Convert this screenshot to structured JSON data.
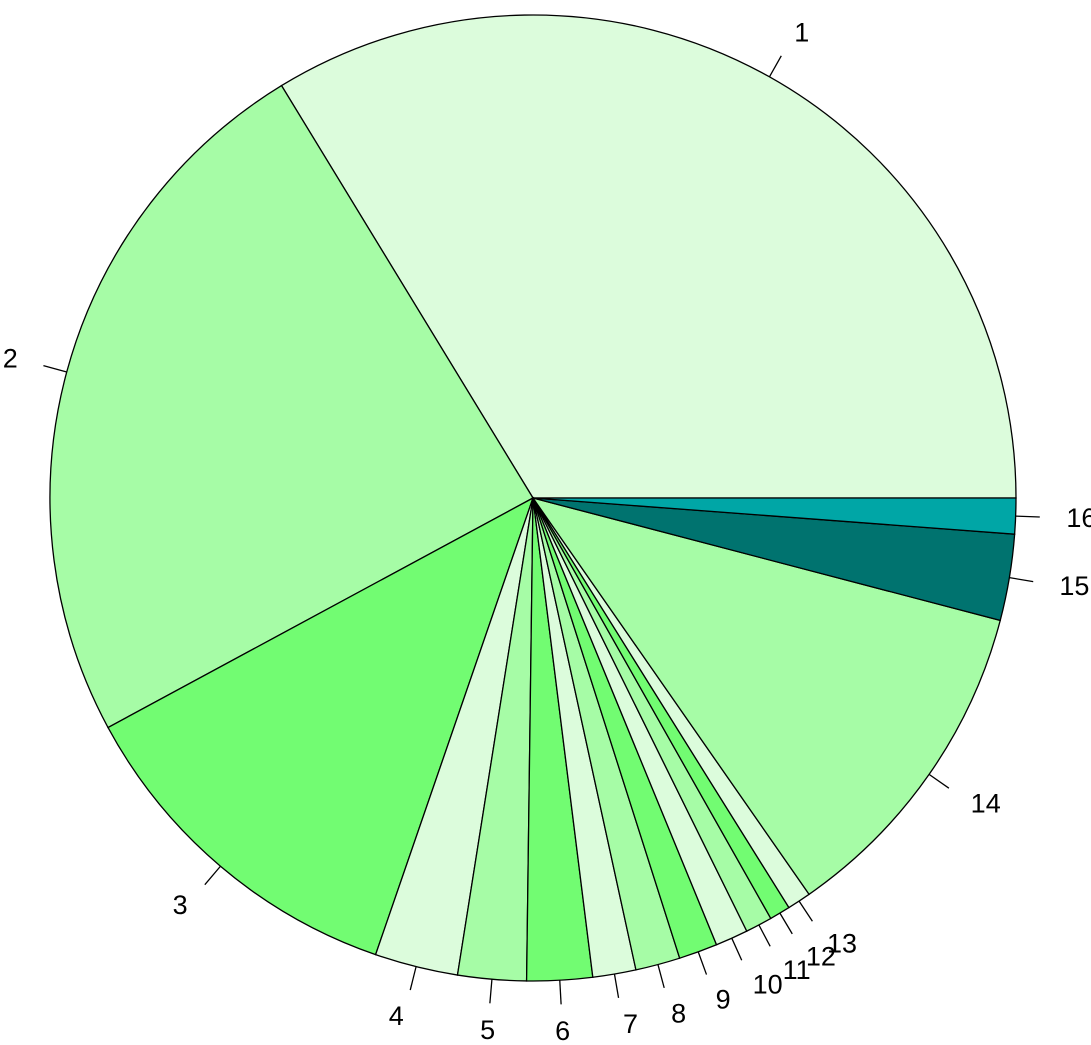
{
  "chart_data": {
    "type": "pie",
    "title": "",
    "start_angle_deg": 0,
    "direction": "counterclockwise",
    "slices": [
      {
        "label": "1",
        "value": 33.9,
        "color": "#DCFCDC"
      },
      {
        "label": "2",
        "value": 24.3,
        "color": "#A6FCA6"
      },
      {
        "label": "3",
        "value": 11.9,
        "color": "#72FC72"
      },
      {
        "label": "4",
        "value": 2.8,
        "color": "#DCFCDC"
      },
      {
        "label": "5",
        "value": 2.3,
        "color": "#A6FCA6"
      },
      {
        "label": "6",
        "value": 2.2,
        "color": "#72FC72"
      },
      {
        "label": "7",
        "value": 1.45,
        "color": "#DCFCDC"
      },
      {
        "label": "8",
        "value": 1.5,
        "color": "#A6FCA6"
      },
      {
        "label": "9",
        "value": 1.3,
        "color": "#72FC72"
      },
      {
        "label": "10",
        "value": 1.1,
        "color": "#DCFCDC"
      },
      {
        "label": "11",
        "value": 0.9,
        "color": "#A6FCA6"
      },
      {
        "label": "12",
        "value": 0.7,
        "color": "#72FC72"
      },
      {
        "label": "13",
        "value": 0.8,
        "color": "#DCFCDC"
      },
      {
        "label": "14",
        "value": 11.3,
        "color": "#A6FCA6"
      },
      {
        "label": "15",
        "value": 2.9,
        "color": "#00736F"
      },
      {
        "label": "16",
        "value": 1.2,
        "color": "#00A6A6"
      }
    ]
  }
}
